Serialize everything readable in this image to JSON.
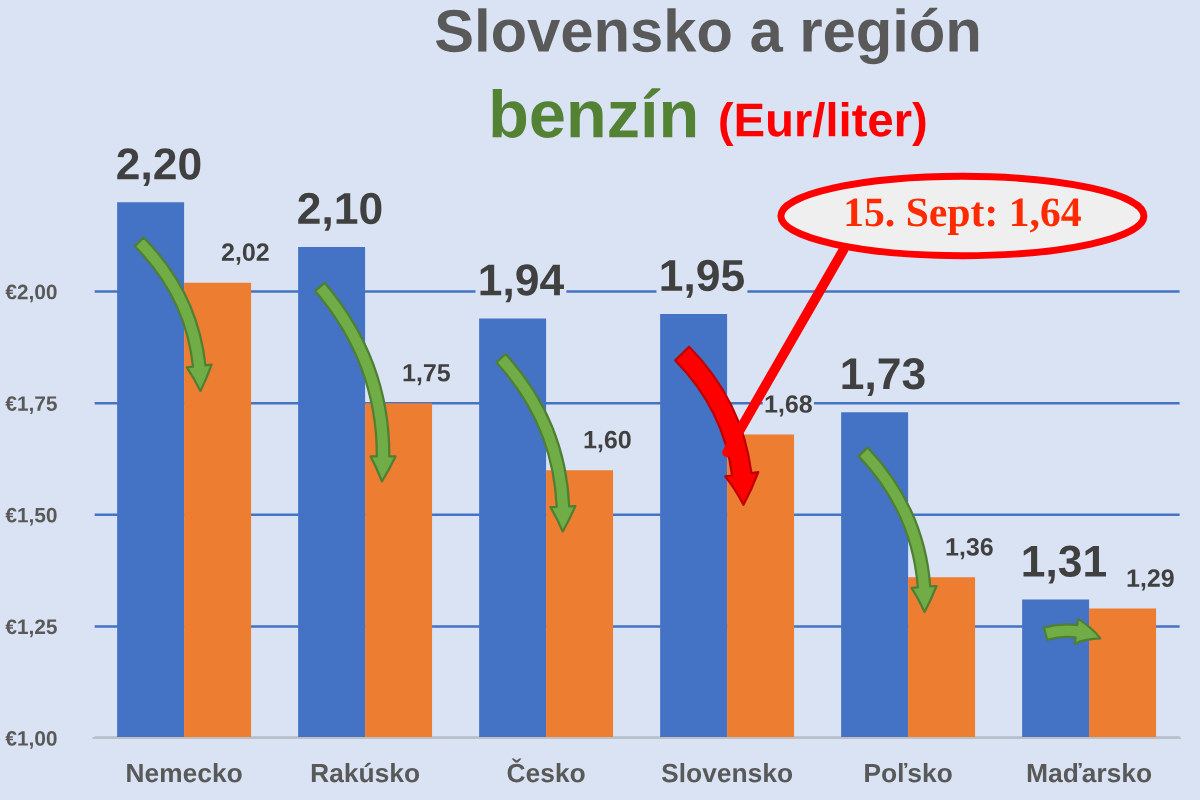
{
  "chart_data": {
    "type": "bar",
    "title": "Slovensko a región",
    "subtitle": "benzín (Eur/liter)",
    "categories": [
      "Nemecko",
      "Rakúsko",
      "Česko",
      "Slovensko",
      "Poľsko",
      "Maďarsko"
    ],
    "series": [
      {
        "color": "#4472c4",
        "values": [
          2.2,
          2.1,
          1.94,
          1.95,
          1.73,
          1.31
        ],
        "value_labels": [
          "2,20",
          "2,10",
          "1,94",
          "1,95",
          "1,73",
          "1,31"
        ]
      },
      {
        "color": "#ed7d31",
        "values": [
          2.02,
          1.75,
          1.6,
          1.68,
          1.36,
          1.29
        ],
        "value_labels": [
          "2,02",
          "1,75",
          "1,60",
          "1,68",
          "1,36",
          "1,29"
        ]
      }
    ],
    "ylim": [
      1.0,
      2.25
    ],
    "yticks": [
      {
        "value": 1.0,
        "label": "€1,00"
      },
      {
        "value": 1.25,
        "label": "€1,25"
      },
      {
        "value": 1.5,
        "label": "€1,50"
      },
      {
        "value": 1.75,
        "label": "€1,75"
      },
      {
        "value": 2.0,
        "label": "€2,00"
      }
    ],
    "grid": "y",
    "annotations": [
      {
        "text": "15. Sept: 1,64",
        "x": "Slovensko",
        "y": 1.64
      }
    ]
  }
}
